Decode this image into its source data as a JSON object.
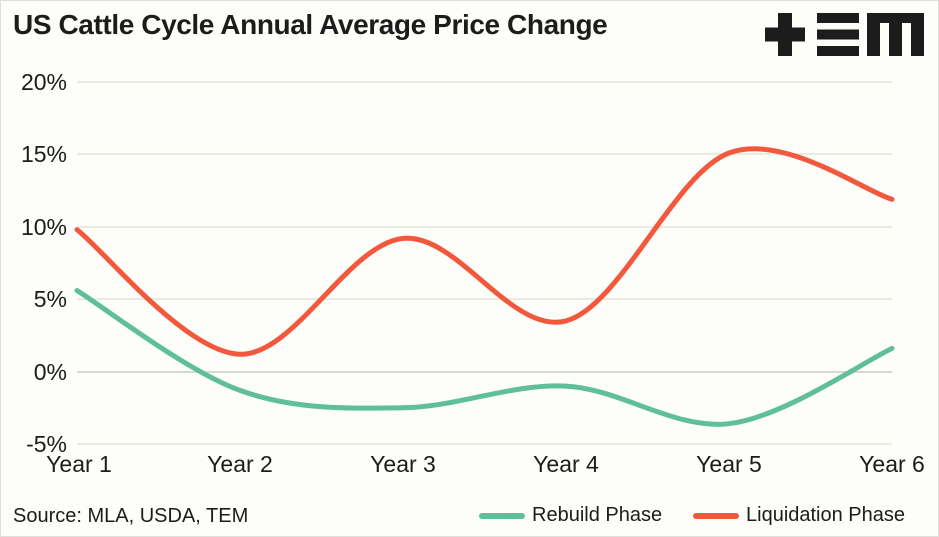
{
  "title": "US Cattle Cycle Annual Average Price Change",
  "logo": {
    "name": "TEM logo",
    "color": "#1C1C1C"
  },
  "footer": {
    "source": "Source: MLA, USDA, TEM"
  },
  "colors": {
    "background": "#FDFDFA",
    "text": "#1C1C1C",
    "gridline": "#ECEAE0",
    "zero_line": "#D7D7D4",
    "rebuild": "#5FBE9B",
    "liquidation": "#F2583C"
  },
  "chart_data": {
    "type": "line",
    "title": "US Cattle Cycle Annual Average Price Change",
    "categories": [
      "Year 1",
      "Year 2",
      "Year 3",
      "Year 4",
      "Year 5",
      "Year 6"
    ],
    "series": [
      {
        "name": "Rebuild Phase",
        "color": "#5FBE9B",
        "values": [
          5.6,
          -1.3,
          -2.5,
          -1.0,
          -3.6,
          1.6
        ]
      },
      {
        "name": "Liquidation Phase",
        "color": "#F2583C",
        "values": [
          9.8,
          1.2,
          9.2,
          3.5,
          15.1,
          11.9
        ]
      }
    ],
    "xlabel": "",
    "ylabel": "",
    "ylim": [
      -5,
      20
    ],
    "y_ticks": [
      {
        "label": "20%",
        "value": 20
      },
      {
        "label": "15%",
        "value": 15
      },
      {
        "label": "10%",
        "value": 10
      },
      {
        "label": "5%",
        "value": 5
      },
      {
        "label": "0%",
        "value": 0
      },
      {
        "label": "-5%",
        "value": -5
      }
    ],
    "grid": "horizontal",
    "legend_position": "bottom-right",
    "line_width": 5
  }
}
